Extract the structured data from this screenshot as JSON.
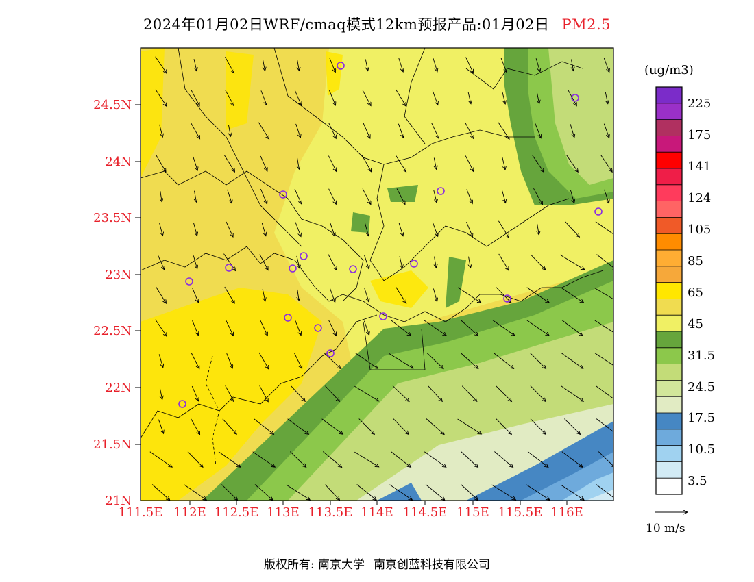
{
  "title": "2024年01月02日WRF/cmaq模式12km预报产品:01月02日",
  "pollutant": "PM2.5",
  "units": "(ug/m3)",
  "lat_labels": [
    "24.5N",
    "24N",
    "23.5N",
    "23N",
    "22.5N",
    "22N",
    "21.5N",
    "21N"
  ],
  "lon_labels": [
    "111.5E",
    "112E",
    "112.5E",
    "113E",
    "113.5E",
    "114E",
    "114.5E",
    "115E",
    "115.5E",
    "116E"
  ],
  "colorbar": {
    "labels": [
      "225",
      "175",
      "141",
      "124",
      "105",
      "85",
      "65",
      "45",
      "31.5",
      "24.5",
      "17.5",
      "10.5",
      "3.5"
    ],
    "colors": [
      "#7b2cc9",
      "#9a30c8",
      "#b03060",
      "#c8187a",
      "#ff0000",
      "#ef1e48",
      "#ff3b5c",
      "#ff6464",
      "#f05a28",
      "#ff8c00",
      "#ffad33",
      "#f6a83a",
      "#ffe600",
      "#f0dc50",
      "#f0f064",
      "#66a53c",
      "#8cc84b",
      "#c3dc78",
      "#d2e69b",
      "#e1ebc3",
      "#4687c3",
      "#6eaadc",
      "#a0d2f0",
      "#d2ebf5",
      "#ffffff"
    ]
  },
  "wind_reference": "10 m/s",
  "footer": {
    "left": "版权所有: 南京大学",
    "right": "南京创蓝科技有限公司"
  },
  "palette": {
    "coastal_yellow": "#ffe600",
    "inland_yellow": "#f0dc50",
    "light_yellow": "#f0f064",
    "dark_green": "#66a53c",
    "mid_green": "#8cc84b",
    "light_green": "#c3dc78",
    "pale_green": "#e1ebc3",
    "blue": "#4687c3",
    "light_blue": "#a0d2f0",
    "station_marker": "#8a2be2"
  }
}
